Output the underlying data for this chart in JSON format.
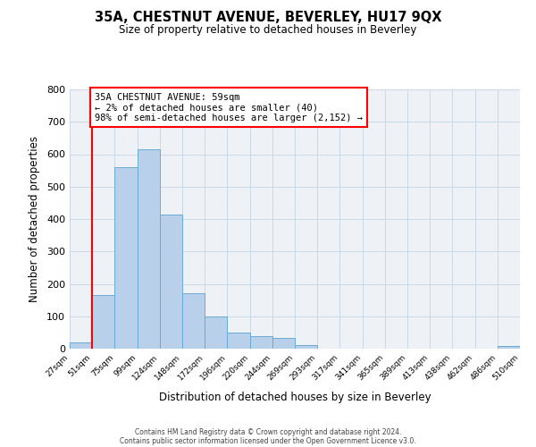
{
  "title": "35A, CHESTNUT AVENUE, BEVERLEY, HU17 9QX",
  "subtitle": "Size of property relative to detached houses in Beverley",
  "xlabel": "Distribution of detached houses by size in Beverley",
  "ylabel": "Number of detached properties",
  "bar_values": [
    20,
    165,
    560,
    615,
    415,
    170,
    100,
    50,
    40,
    33,
    12,
    0,
    0,
    0,
    0,
    0,
    0,
    0,
    0,
    8
  ],
  "bin_labels": [
    "27sqm",
    "51sqm",
    "75sqm",
    "99sqm",
    "124sqm",
    "148sqm",
    "172sqm",
    "196sqm",
    "220sqm",
    "244sqm",
    "269sqm",
    "293sqm",
    "317sqm",
    "341sqm",
    "365sqm",
    "389sqm",
    "413sqm",
    "438sqm",
    "462sqm",
    "486sqm",
    "510sqm"
  ],
  "bar_color": "#b8d0ea",
  "bar_edge_color": "#6aaad4",
  "red_line_x": 1,
  "ylim": [
    0,
    800
  ],
  "yticks": [
    0,
    100,
    200,
    300,
    400,
    500,
    600,
    700,
    800
  ],
  "annotation_title": "35A CHESTNUT AVENUE: 59sqm",
  "annotation_line1": "← 2% of detached houses are smaller (40)",
  "annotation_line2": "98% of semi-detached houses are larger (2,152) →",
  "footer1": "Contains HM Land Registry data © Crown copyright and database right 2024.",
  "footer2": "Contains public sector information licensed under the Open Government Licence v3.0.",
  "background_color": "#eef2f7"
}
